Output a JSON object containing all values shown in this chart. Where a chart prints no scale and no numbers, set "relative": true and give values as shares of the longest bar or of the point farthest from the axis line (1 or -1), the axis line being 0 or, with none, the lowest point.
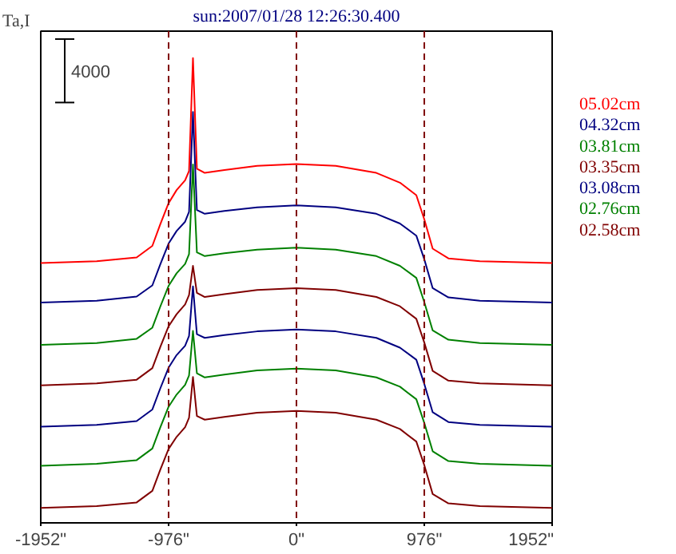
{
  "chart_data": {
    "type": "line",
    "title": "sun:2007/01/28 12:26:30.400",
    "ylabel": "Ta,I",
    "annotations": [
      "4000"
    ],
    "relative": true,
    "tick_labels": "x",
    "line_style": "solid",
    "x": [
      -1952,
      -1525,
      -1220,
      -1100,
      -1040,
      -976,
      -915,
      -850,
      -820,
      -790,
      -760,
      -700,
      -550,
      -300,
      0,
      300,
      610,
      790,
      915,
      976,
      1040,
      1160,
      1400,
      1952
    ],
    "xlim": [
      -1952,
      1952
    ],
    "xticks": [
      {
        "value": -1952,
        "label": "-1952\""
      },
      {
        "value": -976,
        "label": "-976\""
      },
      {
        "value": 0,
        "label": "0\""
      },
      {
        "value": 976,
        "label": "976\""
      },
      {
        "value": 1952,
        "label": "1952\""
      }
    ],
    "ref_lines": [
      {
        "axis": "x",
        "value": -976,
        "color": "#800000",
        "line_style": "dashed"
      },
      {
        "axis": "x",
        "value": 0,
        "color": "#800000",
        "line_style": "dashed"
      },
      {
        "axis": "x",
        "value": 976,
        "color": "#800000",
        "line_style": "dashed"
      }
    ],
    "series": [
      {
        "name": "05.02cm",
        "color": "#ff0000",
        "values": [
          0.559,
          0.563,
          0.571,
          0.596,
          0.642,
          0.688,
          0.716,
          0.737,
          0.757,
          1,
          0.762,
          0.753,
          0.759,
          0.768,
          0.772,
          0.768,
          0.753,
          0.732,
          0.705,
          0.653,
          0.59,
          0.569,
          0.563,
          0.559
        ]
      },
      {
        "name": "04.32cm",
        "color": "#000080",
        "values": [
          0.474,
          0.478,
          0.487,
          0.511,
          0.556,
          0.601,
          0.628,
          0.648,
          0.669,
          0.884,
          0.673,
          0.665,
          0.671,
          0.679,
          0.683,
          0.679,
          0.665,
          0.644,
          0.618,
          0.567,
          0.505,
          0.485,
          0.478,
          0.474
        ]
      },
      {
        "name": "03.81cm",
        "color": "#008000",
        "values": [
          0.383,
          0.387,
          0.396,
          0.42,
          0.465,
          0.51,
          0.537,
          0.557,
          0.578,
          0.771,
          0.582,
          0.574,
          0.58,
          0.588,
          0.592,
          0.588,
          0.574,
          0.553,
          0.527,
          0.475,
          0.414,
          0.394,
          0.387,
          0.383
        ]
      },
      {
        "name": "03.35cm",
        "color": "#800000",
        "values": [
          0.296,
          0.3,
          0.308,
          0.333,
          0.378,
          0.423,
          0.449,
          0.47,
          0.49,
          0.553,
          0.495,
          0.486,
          0.492,
          0.501,
          0.505,
          0.501,
          0.486,
          0.466,
          0.439,
          0.388,
          0.327,
          0.306,
          0.3,
          0.296
        ]
      },
      {
        "name": "03.08cm",
        "color": "#000080",
        "values": [
          0.207,
          0.211,
          0.219,
          0.244,
          0.289,
          0.334,
          0.361,
          0.381,
          0.402,
          0.509,
          0.406,
          0.398,
          0.404,
          0.412,
          0.416,
          0.412,
          0.398,
          0.377,
          0.351,
          0.299,
          0.238,
          0.217,
          0.211,
          0.207
        ]
      },
      {
        "name": "02.76cm",
        "color": "#008000",
        "values": [
          0.123,
          0.127,
          0.135,
          0.16,
          0.205,
          0.25,
          0.276,
          0.297,
          0.317,
          0.413,
          0.322,
          0.313,
          0.319,
          0.328,
          0.332,
          0.328,
          0.313,
          0.293,
          0.266,
          0.215,
          0.154,
          0.133,
          0.127,
          0.123
        ]
      },
      {
        "name": "02.58cm",
        "color": "#800000",
        "values": [
          0.032,
          0.036,
          0.044,
          0.069,
          0.114,
          0.159,
          0.185,
          0.206,
          0.226,
          0.314,
          0.23,
          0.222,
          0.228,
          0.237,
          0.241,
          0.237,
          0.222,
          0.202,
          0.175,
          0.124,
          0.062,
          0.042,
          0.036,
          0.032
        ]
      }
    ]
  }
}
